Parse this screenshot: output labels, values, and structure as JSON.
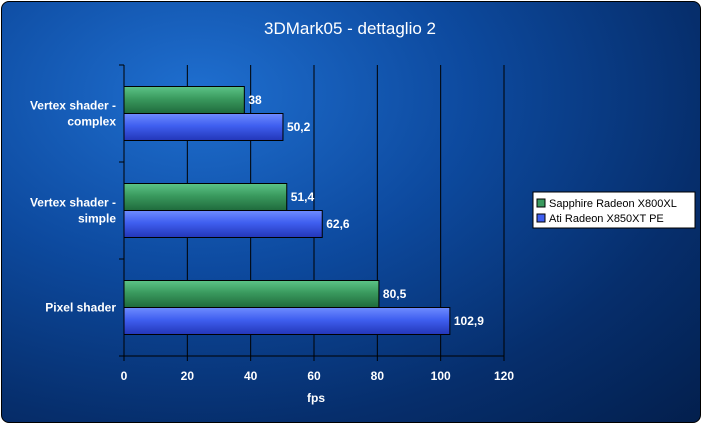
{
  "chart_data": {
    "type": "bar",
    "orientation": "horizontal",
    "title": "3DMark05 - dettaglio 2",
    "xlabel": "fps",
    "ylabel": "",
    "xlim": [
      0,
      120
    ],
    "xticks": [
      "0",
      "20",
      "40",
      "60",
      "80",
      "100",
      "120"
    ],
    "grid": true,
    "legend_position": "right",
    "categories": [
      [
        "Vertex shader -",
        "complex"
      ],
      [
        "Vertex shader -",
        "simple"
      ],
      [
        "Pixel shader"
      ]
    ],
    "series": [
      {
        "name": "Sapphire Radeon X800XL",
        "color": "#3a9a5e",
        "values": [
          38,
          51.4,
          80.5
        ],
        "labels": [
          "38",
          "51,4",
          "80,5"
        ]
      },
      {
        "name": "Ati Radeon X850XT PE",
        "color": "#3f5ff0",
        "values": [
          50.2,
          62.6,
          102.9
        ],
        "labels": [
          "50,2",
          "62,6",
          "102,9"
        ]
      }
    ]
  }
}
